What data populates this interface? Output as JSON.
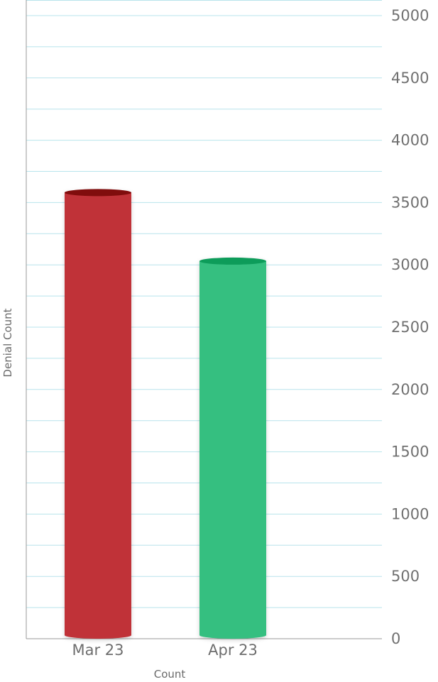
{
  "chart_data": {
    "type": "bar",
    "style": "cylinder",
    "categories": [
      "Mar 23",
      "Apr 23"
    ],
    "values": [
      3580,
      3030
    ],
    "colors": [
      "#c03237",
      "#34bf80"
    ],
    "top_colors": [
      "#800808",
      "#0e9c5a"
    ],
    "title": "",
    "xlabel": "Count",
    "ylabel": "Denial Count",
    "ylim": [
      0,
      5000
    ],
    "y_ticks": [
      0,
      500,
      1000,
      1500,
      2000,
      2500,
      3000,
      3500,
      4000,
      4500,
      5000
    ],
    "y_tick_labels": [
      "0",
      "500",
      "1000",
      "1500",
      "2000",
      "2500",
      "3000",
      "3500",
      "4000",
      "4500",
      "5000"
    ],
    "minor_gridlines": true,
    "grid_color": "#b8e4ec",
    "y_axis_side": "right"
  }
}
